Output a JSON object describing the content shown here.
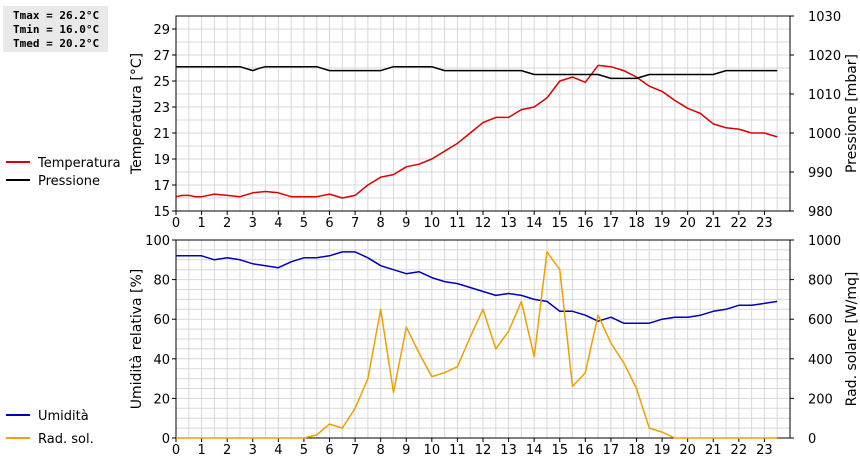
{
  "stats": [
    "Tmax = 26.2°C",
    "Tmin = 16.0°C",
    "Tmed = 20.2°C"
  ],
  "colors": {
    "temperature": "#dd0000",
    "pressure": "#000000",
    "humidity": "#0000bb",
    "solar": "#f0a000",
    "grid": "#d8d8d8"
  },
  "chart_data": [
    {
      "type": "line",
      "xlim": [
        0,
        24
      ],
      "xticks": [
        "0",
        "1",
        "2",
        "3",
        "4",
        "5",
        "6",
        "7",
        "8",
        "9",
        "10",
        "11",
        "12",
        "13",
        "14",
        "15",
        "16",
        "17",
        "18",
        "19",
        "20",
        "21",
        "22",
        "23"
      ],
      "ylabel": "Temperatura [°C]",
      "y2label": "Pressione [mbar]",
      "ylim": [
        15,
        30
      ],
      "yticks": [
        "15",
        "17",
        "19",
        "21",
        "23",
        "25",
        "27",
        "29"
      ],
      "y2lim": [
        980,
        1030
      ],
      "y2ticks": [
        "980",
        "990",
        "1000",
        "1010",
        "1020",
        "1030"
      ],
      "grid": true,
      "legend_position": "left",
      "series": [
        {
          "name": "Temperatura",
          "axis": "left",
          "color": "#dd0000",
          "x": [
            0,
            0.25,
            0.5,
            0.75,
            1,
            1.5,
            2,
            2.5,
            3,
            3.5,
            4,
            4.5,
            5,
            5.5,
            6,
            6.5,
            7,
            7.5,
            8,
            8.25,
            8.5,
            9,
            9.5,
            10,
            10.5,
            11,
            11.5,
            12,
            12.5,
            13,
            13.5,
            14,
            14.5,
            15,
            15.5,
            16,
            16.5,
            17,
            17.5,
            18,
            18.5,
            19,
            19.5,
            20,
            20.5,
            21,
            21.5,
            22,
            22.5,
            23,
            23.5
          ],
          "y": [
            16.1,
            16.2,
            16.2,
            16.1,
            16.1,
            16.3,
            16.2,
            16.1,
            16.4,
            16.5,
            16.4,
            16.1,
            16.1,
            16.1,
            16.3,
            16.0,
            16.2,
            17.0,
            17.6,
            17.7,
            17.8,
            18.4,
            18.6,
            19.0,
            19.6,
            20.2,
            21.0,
            21.8,
            22.2,
            22.2,
            22.8,
            23.0,
            23.7,
            25.0,
            25.3,
            24.9,
            26.2,
            26.1,
            25.8,
            25.3,
            24.6,
            24.2,
            23.5,
            22.9,
            22.5,
            21.7,
            21.4,
            21.3,
            21.0,
            21.0,
            20.7
          ]
        },
        {
          "name": "Pressione",
          "axis": "right",
          "color": "#000000",
          "x": [
            0,
            0.5,
            1,
            1.5,
            2,
            2.5,
            3,
            3.25,
            3.5,
            4,
            4.5,
            5,
            5.5,
            6,
            6.5,
            7,
            7.5,
            8,
            8.5,
            9,
            9.5,
            10,
            10.5,
            11,
            11.5,
            12,
            12.5,
            13,
            13.5,
            14,
            14.5,
            15,
            15.5,
            16,
            16.5,
            17,
            17.5,
            18,
            18.5,
            19,
            19.5,
            20,
            20.5,
            21,
            21.5,
            22,
            22.5,
            23,
            23.5
          ],
          "y": [
            1017,
            1017,
            1017,
            1017,
            1017,
            1017,
            1016,
            1016.6,
            1017,
            1017,
            1017,
            1017,
            1017,
            1016,
            1016,
            1016,
            1016,
            1016,
            1017,
            1017,
            1017,
            1017,
            1016,
            1016,
            1016,
            1016,
            1016,
            1016,
            1016,
            1015,
            1015,
            1015,
            1015,
            1015,
            1015,
            1014,
            1014,
            1014,
            1015,
            1015,
            1015,
            1015,
            1015,
            1015,
            1016,
            1016,
            1016,
            1016,
            1016
          ]
        }
      ]
    },
    {
      "type": "line",
      "xlim": [
        0,
        24
      ],
      "xticks": [
        "0",
        "1",
        "2",
        "3",
        "4",
        "5",
        "6",
        "7",
        "8",
        "9",
        "10",
        "11",
        "12",
        "13",
        "14",
        "15",
        "16",
        "17",
        "18",
        "19",
        "20",
        "21",
        "22",
        "23"
      ],
      "ylabel": "Umidità relativa [%]",
      "y2label": "Rad. solare [W/mq]",
      "ylim": [
        0,
        100
      ],
      "yticks": [
        "0",
        "20",
        "40",
        "60",
        "80",
        "100"
      ],
      "y2lim": [
        0,
        1000
      ],
      "y2ticks": [
        "0",
        "200",
        "400",
        "600",
        "800",
        "1000"
      ],
      "grid": true,
      "legend_position": "left",
      "series": [
        {
          "name": "Umidità",
          "axis": "left",
          "color": "#0000bb",
          "x": [
            0,
            0.5,
            1,
            1.5,
            2,
            2.5,
            3,
            3.5,
            4,
            4.5,
            5,
            5.5,
            6,
            6.5,
            7,
            7.5,
            8,
            8.5,
            9,
            9.5,
            10,
            10.5,
            11,
            11.5,
            12,
            12.5,
            13,
            13.5,
            14,
            14.5,
            15,
            15.5,
            16,
            16.5,
            17,
            17.5,
            18,
            18.5,
            19,
            19.5,
            20,
            20.5,
            21,
            21.5,
            22,
            22.5,
            23,
            23.5
          ],
          "y": [
            92,
            92,
            92,
            90,
            91,
            90,
            88,
            87,
            86,
            89,
            91,
            91,
            92,
            94,
            94,
            91,
            87,
            85,
            83,
            84,
            81,
            79,
            78,
            76,
            74,
            72,
            73,
            72,
            70,
            69,
            64,
            64,
            62,
            59,
            61,
            58,
            58,
            58,
            60,
            61,
            61,
            62,
            64,
            65,
            67,
            67,
            68,
            69
          ]
        },
        {
          "name": "Rad. sol.",
          "axis": "right",
          "color": "#f0a000",
          "x": [
            0,
            0.5,
            1,
            1.5,
            2,
            2.5,
            3,
            3.5,
            4,
            4.5,
            5,
            5.5,
            6,
            6.5,
            7,
            7.5,
            8,
            8.5,
            9,
            9.5,
            10,
            10.5,
            11,
            11.5,
            12,
            12.5,
            13,
            13.5,
            14,
            14.5,
            15,
            15.5,
            16,
            16.5,
            17,
            17.5,
            18,
            18.5,
            19,
            19.5,
            20,
            20.5,
            21,
            21.5,
            22,
            22.5,
            23,
            23.5
          ],
          "y": [
            0,
            0,
            0,
            0,
            0,
            0,
            0,
            0,
            0,
            0,
            0,
            15,
            70,
            50,
            150,
            300,
            650,
            230,
            560,
            430,
            310,
            330,
            360,
            510,
            650,
            450,
            540,
            690,
            410,
            940,
            850,
            260,
            330,
            620,
            480,
            380,
            250,
            50,
            30,
            0,
            0,
            0,
            0,
            0,
            0,
            0,
            0,
            0
          ]
        }
      ]
    }
  ]
}
